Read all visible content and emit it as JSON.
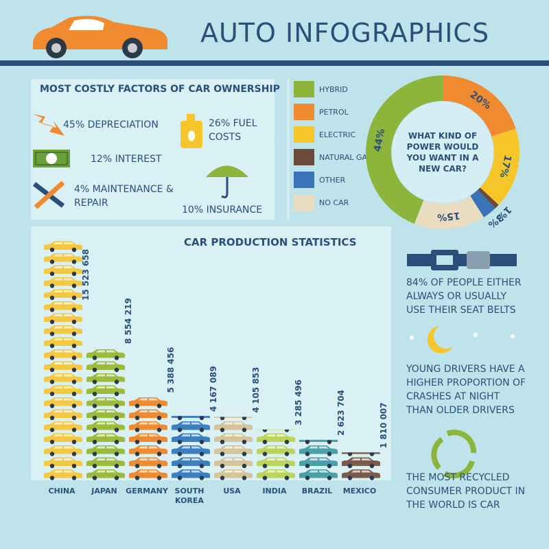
{
  "header": {
    "title": "AUTO INFOGRAPHICS"
  },
  "costs": {
    "title": "MOST COSTLY FACTORS OF CAR OWNERSHIP",
    "items": [
      {
        "share": "45%",
        "label": "DEPRECIATION"
      },
      {
        "share": "26%",
        "label": "FUEL COSTS"
      },
      {
        "share": "12%",
        "label": "INTEREST"
      },
      {
        "share": "4%",
        "label": "MAINTENANCE & REPAIR"
      },
      {
        "share": "10%",
        "label": "INSURANCE"
      }
    ]
  },
  "chart_data": [
    {
      "type": "pie",
      "title": "WHAT KIND OF POWER WOULD YOU WANT IN A NEW CAR?",
      "categories": [
        "HYBRID",
        "PETROL",
        "ELECTRIC",
        "NATURAL GAS",
        "OTHER",
        "NO CAR"
      ],
      "values": [
        44,
        20,
        17,
        1,
        3,
        15
      ],
      "value_labels": [
        "44%",
        "20%",
        "17%",
        "1%",
        "3%",
        "15%"
      ],
      "colors": [
        "#8db53c",
        "#f08a30",
        "#f5c52a",
        "#6b4a3a",
        "#3a73b8",
        "#eadcc0"
      ]
    },
    {
      "type": "bar",
      "title": "CAR PRODUCTION STATISTICS",
      "categories": [
        "CHINA",
        "JAPAN",
        "GERMANY",
        "SOUTH KOREA",
        "USA",
        "INDIA",
        "BRAZIL",
        "MEXICO"
      ],
      "values": [
        15523658,
        8554219,
        5388456,
        4167089,
        4105853,
        3285496,
        2623704,
        1810007
      ],
      "value_labels": [
        "15 523 658",
        "8 554 219",
        "5 388 456",
        "4 167 089",
        "4 105 853",
        "3 285 496",
        "2 623 704",
        "1 810 007"
      ],
      "colors": [
        "#f5c842",
        "#9cbb3a",
        "#f08a30",
        "#3c7fc0",
        "#d5c49a",
        "#bcd45a",
        "#4aa0a8",
        "#7a5a48"
      ]
    }
  ],
  "facts": [
    "84% OF PEOPLE EITHER ALWAYS OR USUALLY USE THEIR SEAT BELTS",
    "YOUNG DRIVERS HAVE A HIGHER PROPORTION OF CRASHES AT NIGHT THAN OLDER DRIVERS",
    "THE MOST RECYCLED CONSUMER PRODUCT IN THE WORLD IS CAR"
  ]
}
